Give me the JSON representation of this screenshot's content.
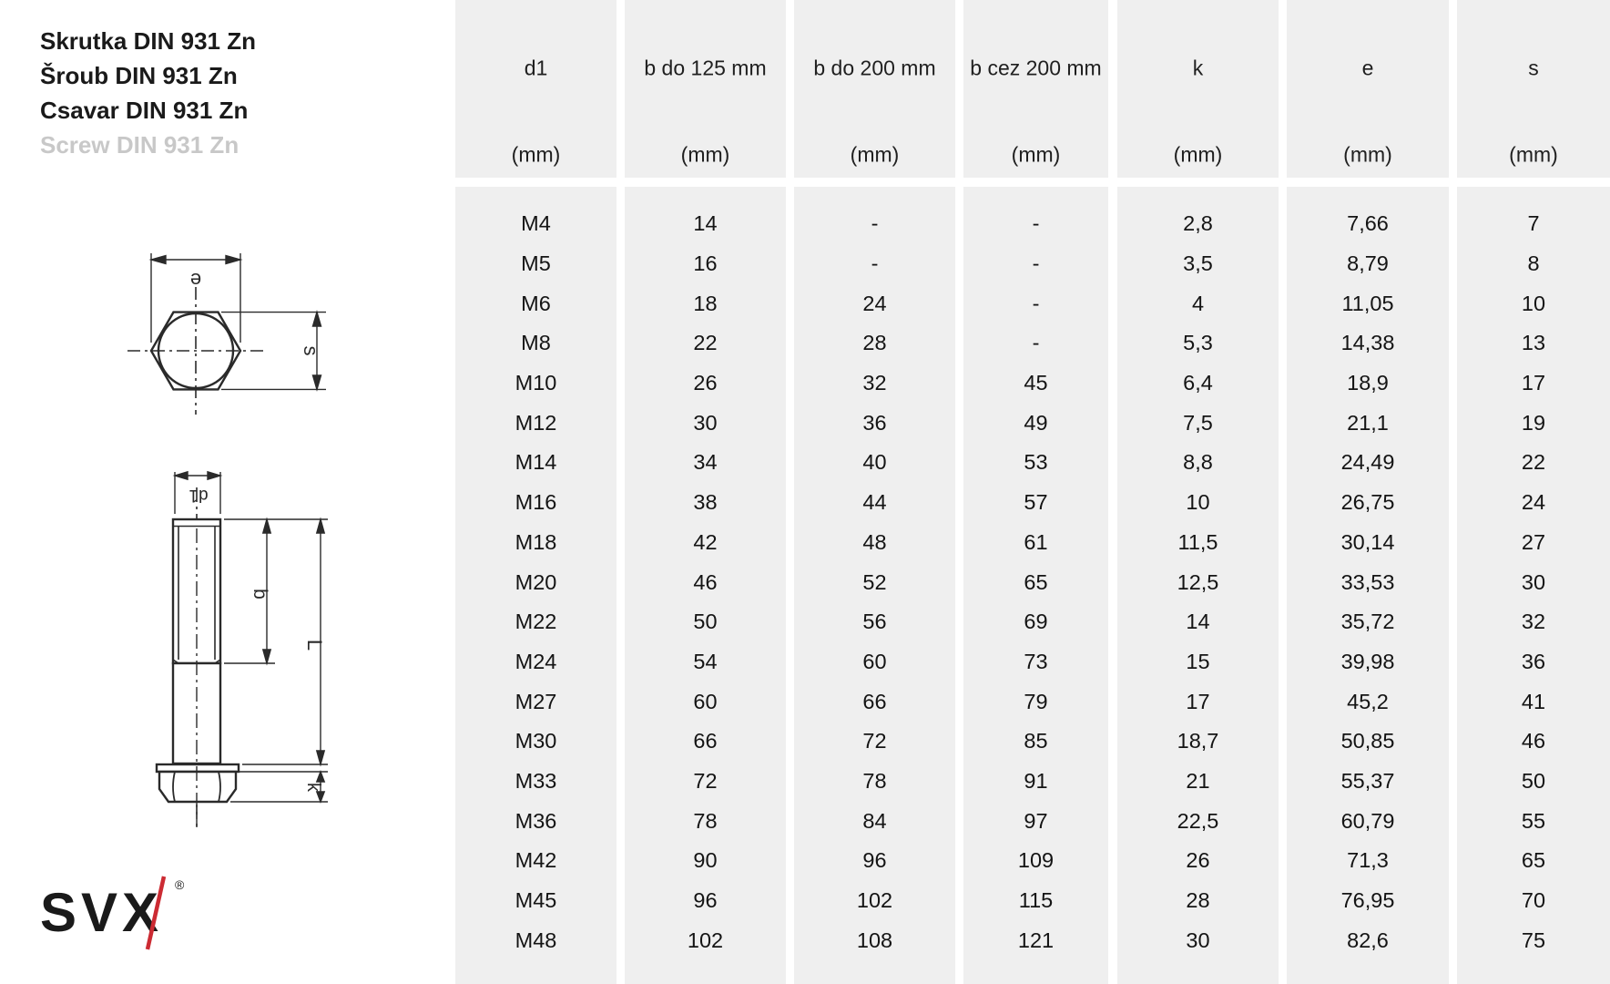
{
  "titles": {
    "line1": "Skrutka DIN 931 Zn",
    "line2": "Šroub DIN 931 Zn",
    "line3": "Csavar DIN 931 Zn",
    "line4": "Screw DIN 931 Zn",
    "muted_color": "#c8c8c8"
  },
  "drawings": {
    "top_view": {
      "width_across_corners_label": "e",
      "width_across_flats_label": "s"
    },
    "side_view": {
      "diameter_label": "d1",
      "thread_length_label": "b",
      "total_length_label": "L",
      "head_height_label": "k"
    }
  },
  "logo": {
    "text": "SVX",
    "registered_mark": "®",
    "text_color": "#1a1a1a",
    "slash_color": "#cc2b33"
  },
  "table": {
    "cell_bg": "#efefef",
    "columns": [
      {
        "name": "d1",
        "unit": "(mm)"
      },
      {
        "name": "b do 125 mm",
        "unit": "(mm)"
      },
      {
        "name": "b do 200 mm",
        "unit": "(mm)"
      },
      {
        "name": "b cez 200 mm",
        "unit": "(mm)"
      },
      {
        "name": "k",
        "unit": "(mm)"
      },
      {
        "name": "e",
        "unit": "(mm)"
      },
      {
        "name": "s",
        "unit": "(mm)"
      }
    ],
    "rows": [
      [
        "M4",
        "14",
        "-",
        "-",
        "2,8",
        "7,66",
        "7"
      ],
      [
        "M5",
        "16",
        "-",
        "-",
        "3,5",
        "8,79",
        "8"
      ],
      [
        "M6",
        "18",
        "24",
        "-",
        "4",
        "11,05",
        "10"
      ],
      [
        "M8",
        "22",
        "28",
        "-",
        "5,3",
        "14,38",
        "13"
      ],
      [
        "M10",
        "26",
        "32",
        "45",
        "6,4",
        "18,9",
        "17"
      ],
      [
        "M12",
        "30",
        "36",
        "49",
        "7,5",
        "21,1",
        "19"
      ],
      [
        "M14",
        "34",
        "40",
        "53",
        "8,8",
        "24,49",
        "22"
      ],
      [
        "M16",
        "38",
        "44",
        "57",
        "10",
        "26,75",
        "24"
      ],
      [
        "M18",
        "42",
        "48",
        "61",
        "11,5",
        "30,14",
        "27"
      ],
      [
        "M20",
        "46",
        "52",
        "65",
        "12,5",
        "33,53",
        "30"
      ],
      [
        "M22",
        "50",
        "56",
        "69",
        "14",
        "35,72",
        "32"
      ],
      [
        "M24",
        "54",
        "60",
        "73",
        "15",
        "39,98",
        "36"
      ],
      [
        "M27",
        "60",
        "66",
        "79",
        "17",
        "45,2",
        "41"
      ],
      [
        "M30",
        "66",
        "72",
        "85",
        "18,7",
        "50,85",
        "46"
      ],
      [
        "M33",
        "72",
        "78",
        "91",
        "21",
        "55,37",
        "50"
      ],
      [
        "M36",
        "78",
        "84",
        "97",
        "22,5",
        "60,79",
        "55"
      ],
      [
        "M42",
        "90",
        "96",
        "109",
        "26",
        "71,3",
        "65"
      ],
      [
        "M45",
        "96",
        "102",
        "115",
        "28",
        "76,95",
        "70"
      ],
      [
        "M48",
        "102",
        "108",
        "121",
        "30",
        "82,6",
        "75"
      ]
    ]
  }
}
